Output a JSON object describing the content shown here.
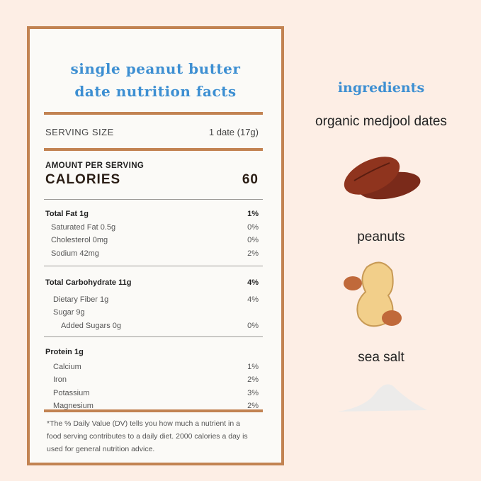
{
  "label": {
    "title_line1": "single peanut butter",
    "title_line2": "date nutrition facts",
    "serving_size_label": "SERVING SIZE",
    "serving_size_value": "1 date (17g)",
    "amount_per_serving": "AMOUNT PER SERVING",
    "calories_label": "CALORIES",
    "calories_value": "60",
    "fat_group": [
      {
        "name": "Total Fat 1g",
        "dv": "1%",
        "bold": true
      },
      {
        "name": "Saturated Fat 0.5g",
        "dv": "0%"
      },
      {
        "name": "Cholesterol 0mg",
        "dv": "0%"
      },
      {
        "name": "Sodium 42mg",
        "dv": "2%"
      }
    ],
    "carb_group": [
      {
        "name": "Total Carbohydrate 11g",
        "dv": "4%",
        "bold": true
      },
      {
        "name": "Dietary Fiber 1g",
        "dv": "4%"
      },
      {
        "name": "Sugar 9g",
        "dv": ""
      },
      {
        "name": "Added Sugars 0g",
        "dv": "0%"
      }
    ],
    "protein_group": [
      {
        "name": "Protein 1g",
        "dv": "",
        "bold": true
      },
      {
        "name": "Calcium",
        "dv": "1%"
      },
      {
        "name": "Iron",
        "dv": "2%"
      },
      {
        "name": "Potassium",
        "dv": "3%"
      },
      {
        "name": "Magnesium",
        "dv": "2%"
      }
    ],
    "footnote": "*The % Daily Value (DV) tells you how much a nutrient in a food serving contributes to a daily diet. 2000 calories a day is used for general nutrition advice."
  },
  "ingredients": {
    "heading": "ingredients",
    "items": [
      "organic medjool dates",
      "peanuts",
      "sea salt"
    ]
  },
  "colors": {
    "accent_blue": "#3d8fd2",
    "border_brown": "#c28352",
    "background": "#fdeee5"
  }
}
